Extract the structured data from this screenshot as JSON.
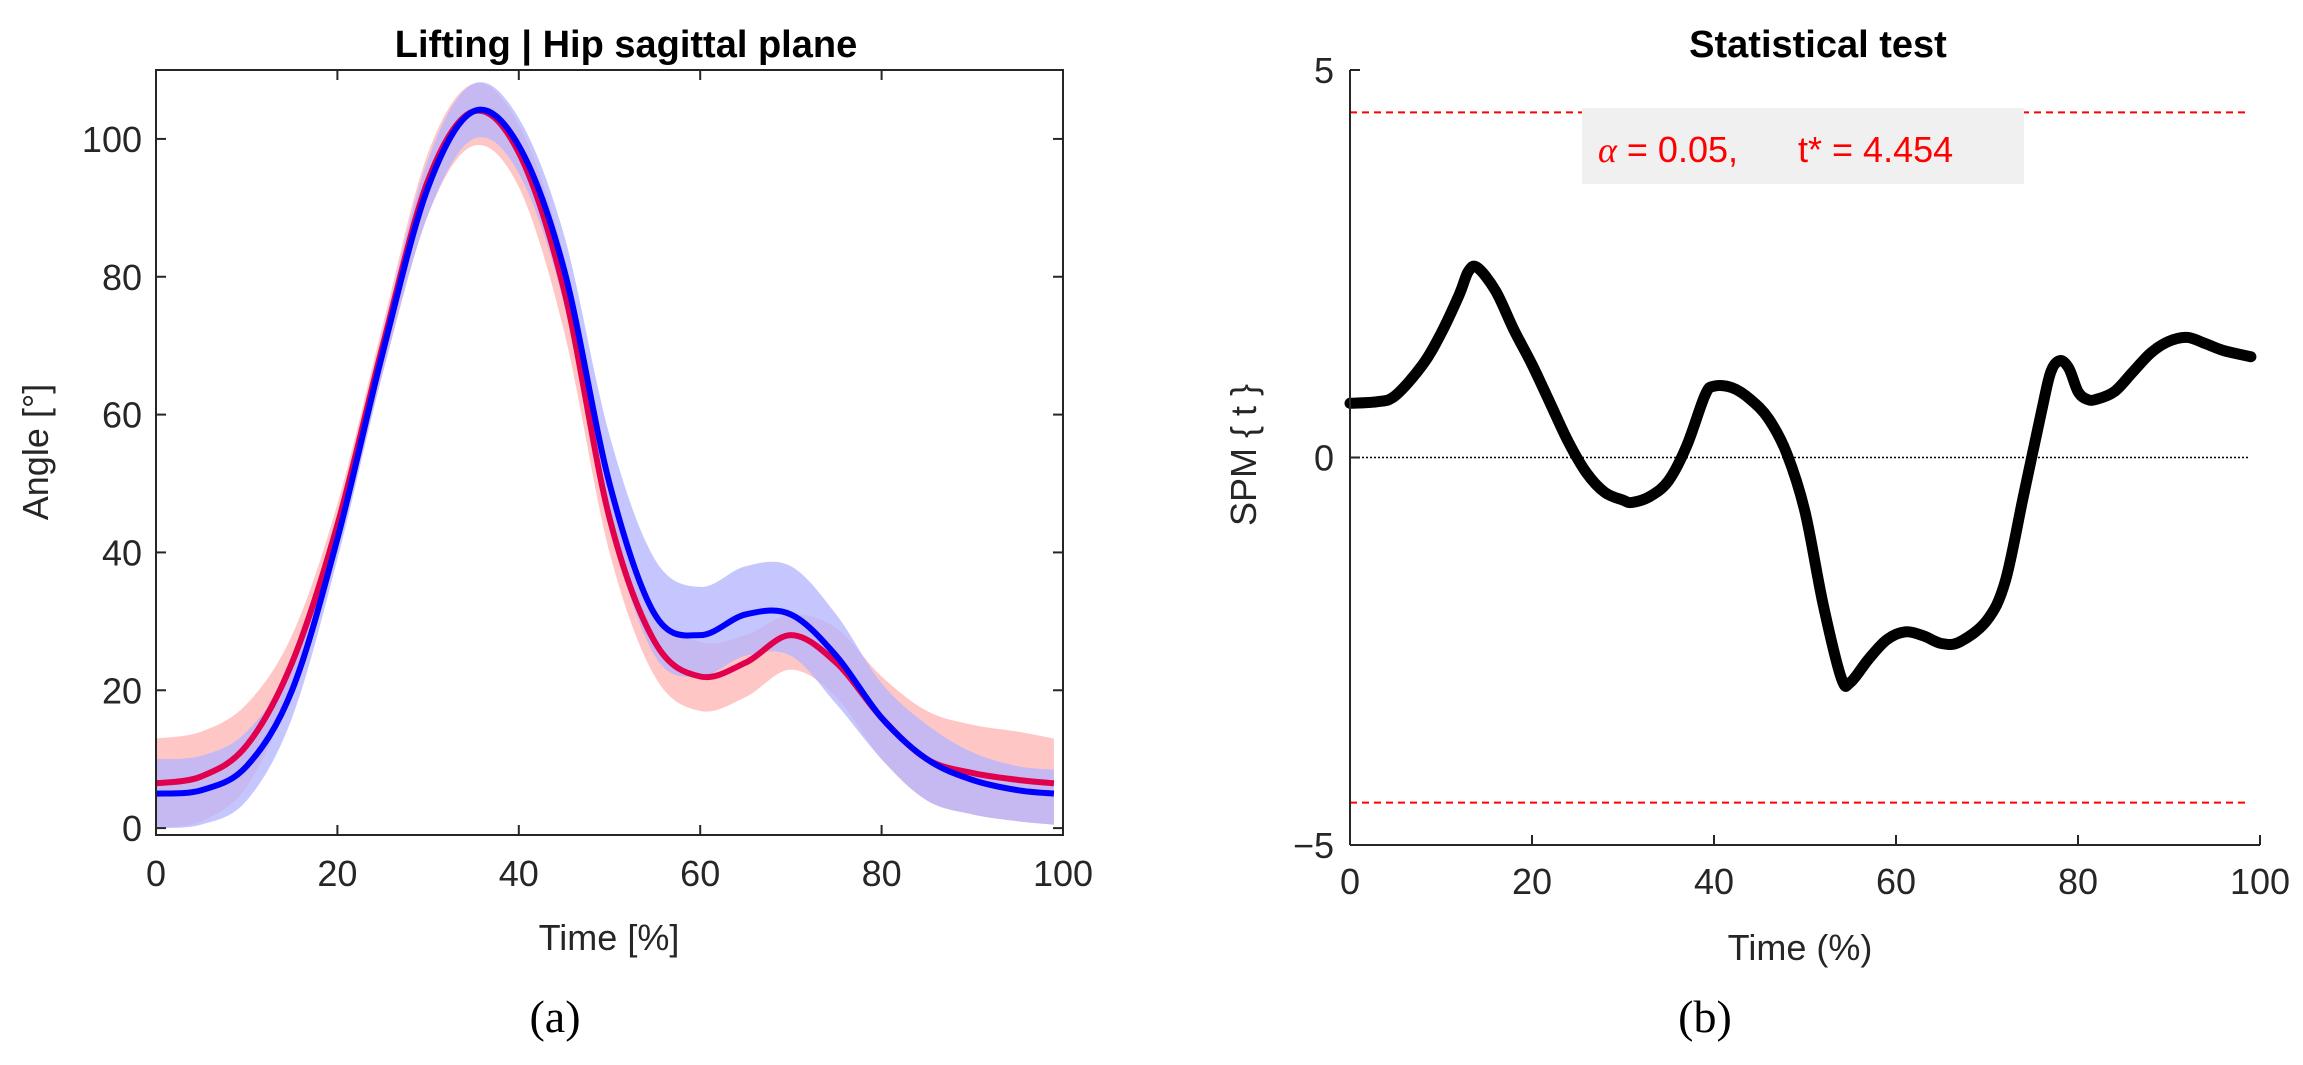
{
  "chart_data": [
    {
      "type": "line",
      "title": "Lifting | Hip sagittal plane",
      "xlabel": "Time [%]",
      "ylabel": "Angle [°]",
      "xlim": [
        0,
        100
      ],
      "ylim": [
        -1,
        110
      ],
      "xticks": [
        0,
        20,
        40,
        60,
        80,
        100
      ],
      "yticks": [
        0,
        20,
        40,
        60,
        80,
        100
      ],
      "panel_label": "(a)",
      "colors": {
        "red": "#e0004d",
        "blue": "#0000ff",
        "red_band": "#ffb3b3",
        "blue_band": "#b3b3ff"
      },
      "series": [
        {
          "name": "red",
          "x": [
            0,
            5,
            10,
            15,
            20,
            25,
            30,
            35,
            40,
            45,
            50,
            55,
            60,
            65,
            70,
            75,
            80,
            85,
            90,
            95,
            99
          ],
          "values": [
            6.5,
            7.5,
            12,
            24,
            44,
            70,
            94,
            104,
            98,
            78,
            45,
            27,
            22,
            24,
            28,
            24,
            16,
            10,
            8,
            7,
            6.5
          ],
          "upper": [
            13,
            14,
            18,
            28,
            47,
            73,
            98,
            108,
            102,
            83,
            50,
            32,
            27,
            28,
            31,
            29,
            22,
            17,
            15,
            14,
            13
          ],
          "lower": [
            0,
            1,
            6,
            20,
            41,
            66,
            89,
            99,
            93,
            72,
            40,
            22,
            17,
            19,
            23,
            19,
            10,
            4,
            2,
            1,
            0.5
          ]
        },
        {
          "name": "blue",
          "x": [
            0,
            5,
            10,
            15,
            20,
            25,
            30,
            35,
            40,
            45,
            50,
            55,
            60,
            65,
            70,
            75,
            80,
            85,
            90,
            95,
            99
          ],
          "values": [
            5,
            5.5,
            9,
            20,
            42,
            69,
            93,
            104,
            99,
            81,
            50,
            31,
            28,
            31,
            31,
            25,
            16,
            10,
            7,
            5.5,
            5
          ],
          "upper": [
            10,
            10.5,
            14,
            24,
            45,
            72,
            97,
            108,
            103,
            86,
            57,
            39,
            35,
            38,
            38,
            31,
            21,
            15,
            11,
            9,
            8.5
          ],
          "lower": [
            0,
            0.5,
            4,
            16,
            39,
            66,
            89,
            100,
            95,
            76,
            44,
            25,
            22,
            25,
            25,
            18,
            10,
            4,
            2,
            1,
            0.5
          ]
        }
      ]
    },
    {
      "type": "line",
      "title": "Statistical test",
      "xlabel": "Time (%)",
      "ylabel": "SPM { t }",
      "xlim": [
        0,
        100
      ],
      "ylim": [
        -5,
        5
      ],
      "xticks": [
        0,
        20,
        40,
        60,
        80,
        100
      ],
      "yticks": [
        -5,
        0,
        5
      ],
      "ytick_labels": [
        "−5",
        "0",
        "5"
      ],
      "panel_label": "(b)",
      "threshold": 4.454,
      "annotation": {
        "alpha_symbol": "α",
        "alpha_text": " = 0.05,",
        "t_text": "t* = 4.454"
      },
      "series": [
        {
          "name": "SPM{t}",
          "x": [
            0,
            3,
            5,
            8,
            10,
            12,
            13,
            14,
            16,
            18,
            20,
            22,
            24,
            26,
            28,
            30,
            31,
            33,
            35,
            37,
            39,
            40,
            42,
            44,
            46,
            48,
            50,
            52,
            54,
            55,
            57,
            59,
            61,
            63,
            65,
            67,
            70,
            72,
            74,
            76,
            77,
            78,
            79,
            80,
            81,
            82,
            84,
            86,
            88,
            90,
            92,
            94,
            96,
            99
          ],
          "values": [
            0.7,
            0.72,
            0.8,
            1.2,
            1.6,
            2.1,
            2.4,
            2.45,
            2.15,
            1.65,
            1.2,
            0.7,
            0.2,
            -0.2,
            -0.45,
            -0.55,
            -0.58,
            -0.5,
            -0.3,
            0.15,
            0.8,
            0.92,
            0.9,
            0.75,
            0.5,
            0.05,
            -0.7,
            -1.9,
            -2.85,
            -2.9,
            -2.6,
            -2.35,
            -2.25,
            -2.3,
            -2.4,
            -2.38,
            -2.1,
            -1.6,
            -0.5,
            0.6,
            1.1,
            1.25,
            1.15,
            0.85,
            0.75,
            0.75,
            0.85,
            1.1,
            1.35,
            1.5,
            1.55,
            1.47,
            1.38,
            1.3
          ]
        }
      ]
    }
  ]
}
